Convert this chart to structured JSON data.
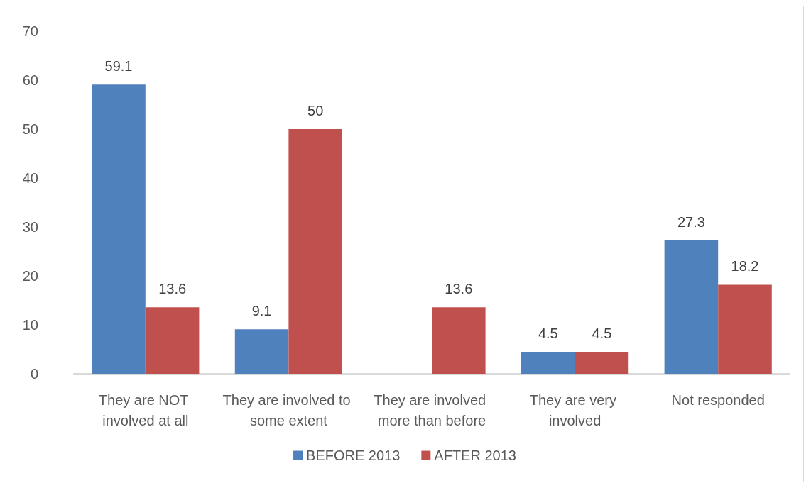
{
  "chart_data": {
    "type": "bar",
    "categories": [
      "They are NOT involved at all",
      "They are involved to some extent",
      "They are involved more than before",
      "They are very involved",
      "Not responded"
    ],
    "series": [
      {
        "name": "BEFORE 2013",
        "color": "#4f81bd",
        "values": [
          59.1,
          9.1,
          null,
          4.5,
          27.3
        ]
      },
      {
        "name": "AFTER 2013",
        "color": "#c0504d",
        "values": [
          13.6,
          50,
          13.6,
          4.5,
          18.2
        ]
      }
    ],
    "ylim": [
      0,
      70
    ],
    "yticks": [
      0,
      10,
      20,
      30,
      40,
      50,
      60,
      70
    ],
    "grid": false,
    "legend": "bottom",
    "data_labels": true
  }
}
